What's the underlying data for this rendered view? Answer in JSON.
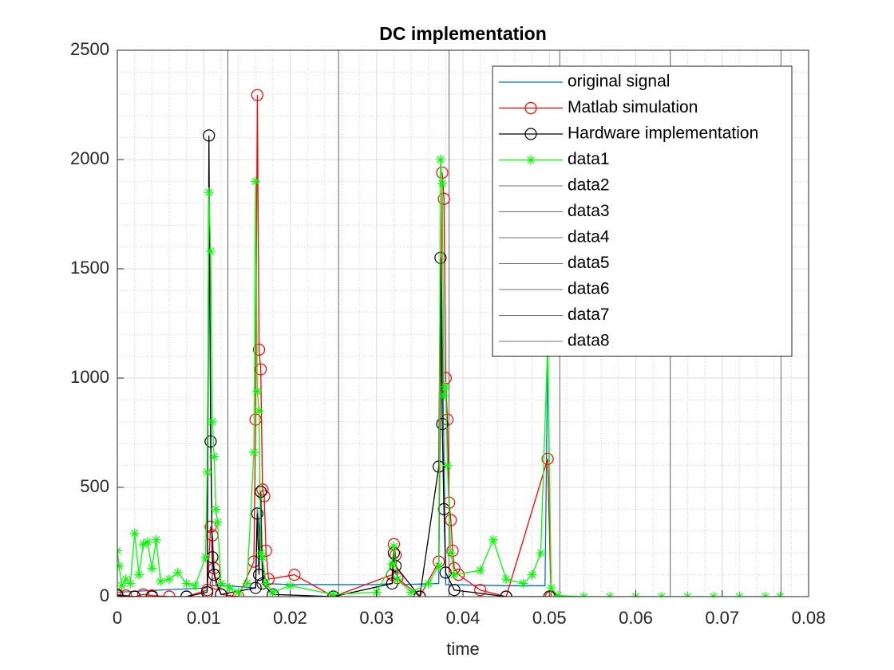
{
  "chart_data": {
    "type": "line",
    "title": "DC implementation",
    "x_label": "time",
    "xlim": [
      0,
      0.08
    ],
    "xticks": [
      0,
      0.01,
      0.02,
      0.03,
      0.04,
      0.05,
      0.06,
      0.07,
      0.08
    ],
    "ylim": [
      0,
      2500
    ],
    "yticks": [
      0,
      500,
      1000,
      1500,
      2000,
      2500
    ],
    "grid": true,
    "minor_grid": true,
    "legend_position": "northeast",
    "series": [
      {
        "name": "original signal",
        "color": "#0072bd",
        "marker": "none",
        "x": [
          0,
          0.005,
          0.0104,
          0.0106,
          0.011,
          0.0125,
          0.016,
          0.0162,
          0.017,
          0.02,
          0.025,
          0.03,
          0.0318,
          0.032,
          0.033,
          0.0372,
          0.0375,
          0.038,
          0.045,
          0.0495,
          0.0498,
          0.0502,
          0.051
        ],
        "values": [
          20,
          30,
          40,
          1700,
          50,
          50,
          40,
          400,
          60,
          55,
          55,
          55,
          60,
          120,
          55,
          60,
          1500,
          55,
          50,
          50,
          1100,
          30,
          0
        ]
      },
      {
        "name": "Matlab simulation",
        "color": "#ff0000",
        "marker": "o",
        "x": [
          0,
          0.001,
          0.002,
          0.003,
          0.004,
          0.006,
          0.008,
          0.0104,
          0.0108,
          0.011,
          0.0112,
          0.0114,
          0.012,
          0.014,
          0.0158,
          0.016,
          0.0162,
          0.0164,
          0.0166,
          0.0168,
          0.017,
          0.0172,
          0.0175,
          0.0205,
          0.025,
          0.0318,
          0.032,
          0.0322,
          0.0324,
          0.035,
          0.0372,
          0.0376,
          0.0378,
          0.038,
          0.0382,
          0.0384,
          0.0386,
          0.0388,
          0.039,
          0.0395,
          0.042,
          0.045,
          0.0498,
          0.0502
        ],
        "values": [
          10,
          5,
          0,
          10,
          5,
          0,
          0,
          30,
          320,
          280,
          130,
          60,
          10,
          0,
          160,
          810,
          2295,
          1130,
          1040,
          490,
          460,
          210,
          80,
          100,
          0,
          100,
          240,
          190,
          85,
          0,
          160,
          1940,
          1820,
          1000,
          810,
          430,
          350,
          210,
          130,
          100,
          30,
          0,
          630,
          0
        ]
      },
      {
        "name": "Hardware implementation",
        "color": "#000000",
        "marker": "o",
        "x": [
          0,
          0.002,
          0.004,
          0.008,
          0.0104,
          0.0106,
          0.0108,
          0.011,
          0.0112,
          0.012,
          0.016,
          0.0162,
          0.0164,
          0.0166,
          0.0168,
          0.018,
          0.025,
          0.0318,
          0.032,
          0.0322,
          0.035,
          0.0372,
          0.0374,
          0.0376,
          0.0378,
          0.038,
          0.039,
          0.045,
          0.05
        ],
        "values": [
          5,
          0,
          0,
          0,
          20,
          2110,
          710,
          180,
          100,
          10,
          40,
          380,
          100,
          480,
          60,
          10,
          0,
          60,
          200,
          140,
          0,
          595,
          1550,
          790,
          400,
          110,
          30,
          0,
          0
        ]
      },
      {
        "name": "data1",
        "color": "#00ff00",
        "marker": "*",
        "x": [
          0,
          0.0002,
          0.0005,
          0.001,
          0.0015,
          0.002,
          0.0025,
          0.003,
          0.0035,
          0.004,
          0.0045,
          0.005,
          0.006,
          0.007,
          0.008,
          0.009,
          0.0102,
          0.0104,
          0.0106,
          0.0108,
          0.011,
          0.0112,
          0.0114,
          0.0116,
          0.012,
          0.013,
          0.014,
          0.015,
          0.0158,
          0.016,
          0.0162,
          0.0164,
          0.0166,
          0.0168,
          0.0172,
          0.018,
          0.02,
          0.025,
          0.03,
          0.0318,
          0.032,
          0.0324,
          0.034,
          0.036,
          0.0372,
          0.0374,
          0.0376,
          0.0378,
          0.038,
          0.0382,
          0.0386,
          0.039,
          0.042,
          0.0435,
          0.045,
          0.047,
          0.048,
          0.049,
          0.0498,
          0.0502,
          0.051,
          0.054,
          0.057,
          0.06,
          0.063,
          0.066,
          0.069,
          0.072,
          0.075,
          0.0767
        ],
        "values": [
          210,
          140,
          50,
          80,
          60,
          290,
          100,
          240,
          250,
          130,
          260,
          70,
          80,
          110,
          60,
          50,
          180,
          570,
          1850,
          1580,
          800,
          640,
          400,
          340,
          60,
          40,
          20,
          60,
          660,
          1900,
          940,
          850,
          200,
          180,
          60,
          20,
          50,
          10,
          20,
          150,
          230,
          80,
          20,
          60,
          140,
          2000,
          1890,
          920,
          960,
          600,
          200,
          100,
          120,
          260,
          80,
          60,
          100,
          200,
          1150,
          40,
          5,
          0,
          0,
          0,
          0,
          0,
          0,
          0,
          0,
          0
        ]
      },
      {
        "name": "data2",
        "color": "#404040",
        "marker": "none",
        "x": [
          0,
          0
        ],
        "values": [
          0,
          2500
        ]
      },
      {
        "name": "data3",
        "color": "#404040",
        "marker": "none",
        "x": [
          0.0128,
          0.0128
        ],
        "values": [
          0,
          2500
        ]
      },
      {
        "name": "data4",
        "color": "#404040",
        "marker": "none",
        "x": [
          0.0256,
          0.0256
        ],
        "values": [
          0,
          2500
        ]
      },
      {
        "name": "data5",
        "color": "#404040",
        "marker": "none",
        "x": [
          0.0384,
          0.0384
        ],
        "values": [
          0,
          2500
        ]
      },
      {
        "name": "data6",
        "color": "#404040",
        "marker": "none",
        "x": [
          0.0512,
          0.0512
        ],
        "values": [
          0,
          2500
        ]
      },
      {
        "name": "data7",
        "color": "#404040",
        "marker": "none",
        "x": [
          0.064,
          0.064
        ],
        "values": [
          0,
          2500
        ]
      },
      {
        "name": "data8",
        "color": "#404040",
        "marker": "none",
        "x": [
          0.0768,
          0.0768
        ],
        "values": [
          0,
          2500
        ]
      }
    ]
  }
}
